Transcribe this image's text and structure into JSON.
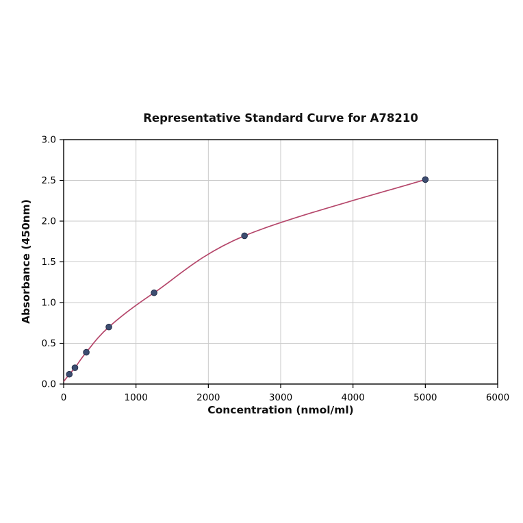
{
  "chart_data": {
    "type": "scatter",
    "title": "Representative Standard Curve for A78210",
    "xlabel": "Concentration (nmol/ml)",
    "ylabel": "Absorbance (450nm)",
    "xlim": [
      0,
      6000
    ],
    "ylim": [
      0.0,
      3.0
    ],
    "grid": true,
    "legend": "none",
    "x_ticks": [
      0,
      1000,
      2000,
      3000,
      4000,
      5000,
      6000
    ],
    "x_tick_labels": [
      "0",
      "1000",
      "2000",
      "3000",
      "4000",
      "5000",
      "6000"
    ],
    "y_ticks": [
      0.0,
      0.5,
      1.0,
      1.5,
      2.0,
      2.5,
      3.0
    ],
    "y_tick_labels": [
      "0.0",
      "0.5",
      "1.0",
      "1.5",
      "2.0",
      "2.5",
      "3.0"
    ],
    "points": {
      "x": [
        78,
        156,
        313,
        625,
        1250,
        2500,
        5000
      ],
      "y": [
        0.12,
        0.2,
        0.39,
        0.7,
        1.12,
        1.82,
        2.51
      ]
    },
    "curve_prepend": [
      [
        0,
        0.03
      ]
    ],
    "curve_color": "#b5476b",
    "point_color": "#3d4d71",
    "point_edge_color": "#27324d",
    "grid_color": "#c9c9c9",
    "axis_color": "#000000",
    "background_color": "#ffffff"
  }
}
